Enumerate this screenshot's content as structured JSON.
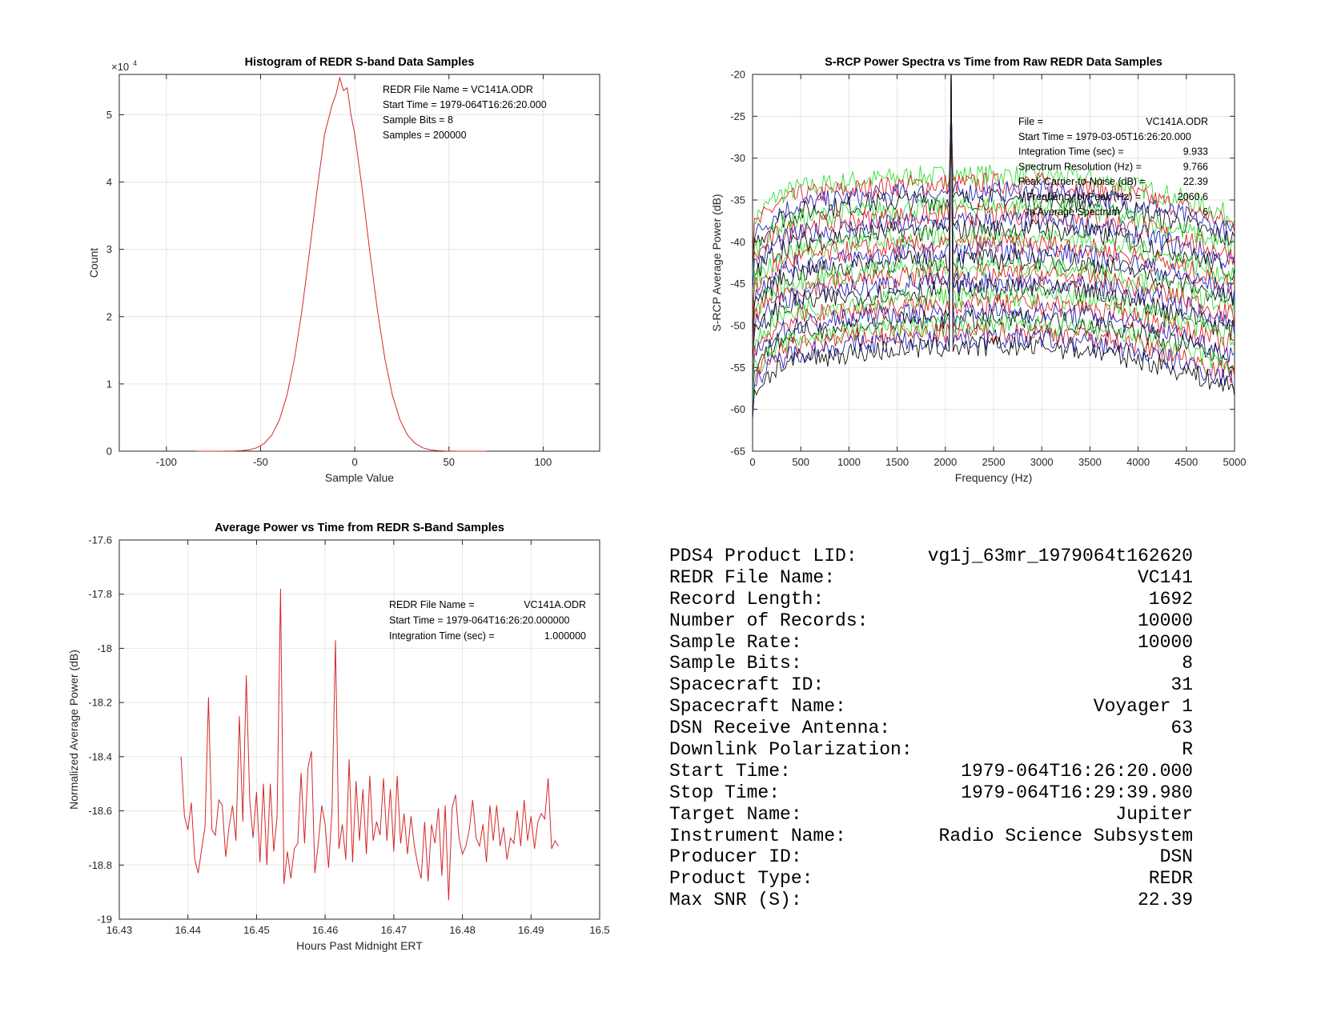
{
  "chart_data": [
    {
      "type": "line",
      "id": "histogram",
      "title": "Histogram of REDR S-band Data Samples",
      "xlabel": "Sample Value",
      "ylabel": "Count",
      "y_exponent_label": "×10",
      "y_exponent": "4",
      "xlim": [
        -125,
        130
      ],
      "ylim": [
        0,
        56000
      ],
      "xticks": [
        -100,
        -50,
        0,
        50,
        100
      ],
      "yticks": [
        0,
        10000,
        20000,
        30000,
        40000,
        50000
      ],
      "ytick_labels": [
        "0",
        "1",
        "2",
        "3",
        "4",
        "5"
      ],
      "grid": true,
      "color": "#d62728",
      "x": [
        -84,
        -72,
        -64,
        -60,
        -56,
        -52,
        -48,
        -44,
        -40,
        -36,
        -32,
        -28,
        -24,
        -20,
        -16,
        -12,
        -10,
        -8,
        -6,
        -4,
        -2,
        0,
        4,
        8,
        12,
        16,
        20,
        24,
        28,
        32,
        36,
        40,
        44,
        48,
        56,
        70
      ],
      "y": [
        0,
        3,
        29,
        81,
        212,
        517,
        1160,
        2416,
        4650,
        8300,
        13700,
        20960,
        29650,
        38870,
        47140,
        51500,
        53000,
        55500,
        53600,
        54000,
        50000,
        47140,
        38870,
        29650,
        20960,
        13700,
        8300,
        4650,
        2416,
        1160,
        517,
        212,
        81,
        29,
        3,
        0
      ],
      "annotations": [
        "REDR File Name = VC141A.ODR",
        "Start Time = 1979-064T16:26:20.000",
        "Sample Bits = 8",
        "Samples = 200000"
      ]
    },
    {
      "type": "line",
      "id": "spectra",
      "title": "S-RCP Power Spectra vs Time from Raw REDR Data Samples",
      "xlabel": "Frequency (Hz)",
      "ylabel": "S-RCP Average Power (dB)",
      "xlim": [
        0,
        5000
      ],
      "ylim": [
        -65,
        -20
      ],
      "xticks": [
        0,
        500,
        1000,
        1500,
        2000,
        2500,
        3000,
        3500,
        4000,
        4500,
        5000
      ],
      "yticks": [
        -65,
        -60,
        -55,
        -50,
        -45,
        -40,
        -35,
        -30,
        -25,
        -20
      ],
      "grid": true,
      "peak_frequency": 2060.6,
      "peak_level": -25,
      "envelope_freq": [
        0,
        250,
        500,
        1000,
        1500,
        2000,
        2500,
        3000,
        3500,
        4000,
        4500,
        5000
      ],
      "envelope_rel_db": [
        -5.5,
        -2.5,
        -1.5,
        -0.8,
        -0.3,
        -0.1,
        0,
        0,
        -0.5,
        -1.5,
        -3,
        -5
      ],
      "series": [
        {
          "color": "#33dd33",
          "level": -32.0
        },
        {
          "color": "#dd2222",
          "level": -33.0
        },
        {
          "color": "#2222bb",
          "level": -34.0
        },
        {
          "color": "#111111",
          "level": -34.9
        },
        {
          "color": "#33dd33",
          "level": -35.8
        },
        {
          "color": "#dd2222",
          "level": -36.7
        },
        {
          "color": "#2222bb",
          "level": -37.6
        },
        {
          "color": "#111111",
          "level": -38.5
        },
        {
          "color": "#33dd33",
          "level": -39.4
        },
        {
          "color": "#dd2222",
          "level": -40.3
        },
        {
          "color": "#2222bb",
          "level": -41.2
        },
        {
          "color": "#111111",
          "level": -42.1
        },
        {
          "color": "#33dd33",
          "level": -43.0
        },
        {
          "color": "#dd2222",
          "level": -43.9
        },
        {
          "color": "#2222bb",
          "level": -44.8
        },
        {
          "color": "#111111",
          "level": -45.7
        },
        {
          "color": "#33dd33",
          "level": -46.6
        },
        {
          "color": "#dd2222",
          "level": -47.5
        },
        {
          "color": "#2222bb",
          "level": -48.4
        },
        {
          "color": "#111111",
          "level": -49.3
        },
        {
          "color": "#33dd33",
          "level": -50.0
        },
        {
          "color": "#dd2222",
          "level": -50.8
        },
        {
          "color": "#2222bb",
          "level": -51.6
        },
        {
          "color": "#111111",
          "level": -52.5
        }
      ],
      "annotations": [
        [
          "File =",
          "VC141A.ODR"
        ],
        [
          "Start Time = 1979-03-05T16:26:20.000",
          ""
        ],
        [
          "Integration Time (sec) =",
          "9.933"
        ],
        [
          "Spectrum Resolution (Hz) =",
          "9.766"
        ],
        [
          "Peak Carrier-to-Noise (dB) =",
          "22.39"
        ],
        [
          "   Frequency of Peak (Hz) =",
          "2060.6"
        ],
        [
          "   In Average Spectrum",
          "6"
        ]
      ]
    },
    {
      "type": "line",
      "id": "power",
      "title": "Average Power vs Time from REDR S-Band Samples",
      "xlabel": "Hours Past Midnight ERT",
      "ylabel": "Normalized Average Power (dB)",
      "xlim": [
        16.43,
        16.5
      ],
      "ylim": [
        -19,
        -17.6
      ],
      "xticks": [
        16.43,
        16.44,
        16.45,
        16.46,
        16.47,
        16.48,
        16.49,
        16.5
      ],
      "xtick_labels": [
        "16.43",
        "16.44",
        "16.45",
        "16.46",
        "16.47",
        "16.48",
        "16.49",
        "16.5"
      ],
      "yticks": [
        -19,
        -18.8,
        -18.6,
        -18.4,
        -18.2,
        -18,
        -17.8,
        -17.6
      ],
      "ytick_labels": [
        "-19",
        "-18.8",
        "-18.6",
        "-18.4",
        "-18.2",
        "-18",
        "-17.8",
        "-17.6"
      ],
      "grid": true,
      "color": "#d62728",
      "x_start": 16.439,
      "x_step": 0.0005,
      "y": [
        -18.4,
        -18.62,
        -18.67,
        -18.57,
        -18.78,
        -18.83,
        -18.74,
        -18.66,
        -18.18,
        -18.67,
        -18.69,
        -18.56,
        -18.58,
        -18.77,
        -18.66,
        -18.58,
        -18.71,
        -18.25,
        -18.64,
        -18.1,
        -18.56,
        -18.7,
        -18.53,
        -18.79,
        -18.5,
        -18.8,
        -18.5,
        -18.75,
        -18.62,
        -17.78,
        -18.87,
        -18.75,
        -18.85,
        -18.74,
        -18.72,
        -18.46,
        -18.72,
        -18.44,
        -18.38,
        -18.83,
        -18.72,
        -18.58,
        -18.65,
        -18.81,
        -18.6,
        -17.97,
        -18.74,
        -18.65,
        -18.78,
        -18.41,
        -18.79,
        -18.49,
        -18.71,
        -18.52,
        -18.76,
        -18.47,
        -18.71,
        -18.64,
        -18.69,
        -18.48,
        -18.71,
        -18.52,
        -18.75,
        -18.47,
        -18.72,
        -18.61,
        -18.76,
        -18.62,
        -18.73,
        -18.8,
        -18.85,
        -18.64,
        -18.86,
        -18.65,
        -18.72,
        -18.59,
        -18.84,
        -18.58,
        -18.93,
        -18.59,
        -18.54,
        -18.7,
        -18.76,
        -18.73,
        -18.67,
        -18.56,
        -18.7,
        -18.73,
        -18.65,
        -18.79,
        -18.58,
        -18.71,
        -18.58,
        -18.73,
        -18.66,
        -18.78,
        -18.7,
        -18.72,
        -18.6,
        -18.73,
        -18.56,
        -18.71,
        -18.62,
        -18.74,
        -18.64,
        -18.61,
        -18.63,
        -18.48,
        -18.74,
        -18.71,
        -18.73
      ],
      "annotations": [
        [
          "REDR File Name =",
          "VC141A.ODR"
        ],
        [
          "Start Time = 1979-064T16:26:20.000000",
          ""
        ],
        [
          "Integration Time (sec) =",
          "1.000000"
        ]
      ]
    }
  ],
  "info": [
    {
      "label": "PDS4 Product LID:",
      "value": "vg1j_63mr_1979064t162620"
    },
    {
      "label": "REDR File Name:",
      "value": "VC141"
    },
    {
      "label": "Record Length:",
      "value": "1692"
    },
    {
      "label": "Number of Records:",
      "value": "10000"
    },
    {
      "label": "Sample Rate:",
      "value": "10000"
    },
    {
      "label": "Sample Bits:",
      "value": "8"
    },
    {
      "label": "Spacecraft ID:",
      "value": "31"
    },
    {
      "label": "Spacecraft Name:",
      "value": "Voyager 1"
    },
    {
      "label": "DSN Receive Antenna:",
      "value": "63"
    },
    {
      "label": "Downlink Polarization:",
      "value": "R"
    },
    {
      "label": "Start Time:",
      "value": "1979-064T16:26:20.000"
    },
    {
      "label": "Stop Time:",
      "value": "1979-064T16:29:39.980"
    },
    {
      "label": "Target Name:",
      "value": "Jupiter"
    },
    {
      "label": "Instrument Name:",
      "value": "Radio Science Subsystem"
    },
    {
      "label": "Producer ID:",
      "value": "DSN"
    },
    {
      "label": "Product Type:",
      "value": "REDR"
    },
    {
      "label": "Max SNR (S):",
      "value": "22.39"
    }
  ]
}
